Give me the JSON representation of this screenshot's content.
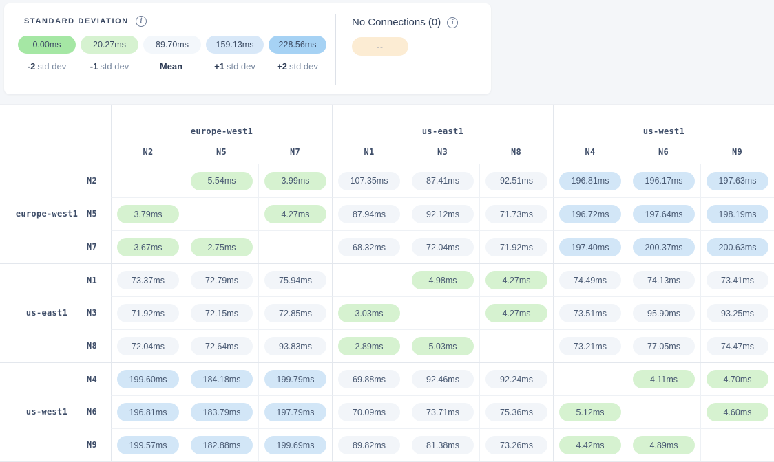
{
  "legend": {
    "title": "STANDARD DEVIATION",
    "info_icon": "info-icon",
    "items": [
      {
        "value": "0.00ms",
        "prefix": "-2",
        "suffix": "std dev",
        "color": "#a5e7a4"
      },
      {
        "value": "20.27ms",
        "prefix": "-1",
        "suffix": "std dev",
        "color": "#d6f2d0"
      },
      {
        "value": "89.70ms",
        "prefix": "Mean",
        "suffix": "",
        "color": "#f3f7fb"
      },
      {
        "value": "159.13ms",
        "prefix": "+1",
        "suffix": "std dev",
        "color": "#d8e8f8"
      },
      {
        "value": "228.56ms",
        "prefix": "+2",
        "suffix": "std dev",
        "color": "#a6d2f4"
      }
    ]
  },
  "no_connections": {
    "title": "No Connections (0)",
    "info_icon": "info-icon",
    "pill_text": "--",
    "pill_color": "#fcecd3"
  },
  "matrix": {
    "cell_colors": {
      "low": "#d6f2d0",
      "mid": "#f2f5f9",
      "high": "#d2e6f7"
    },
    "col_groups": [
      {
        "name": "europe-west1",
        "nodes": [
          "N2",
          "N5",
          "N7"
        ]
      },
      {
        "name": "us-east1",
        "nodes": [
          "N1",
          "N3",
          "N8"
        ]
      },
      {
        "name": "us-west1",
        "nodes": [
          "N4",
          "N6",
          "N9"
        ]
      }
    ],
    "row_groups": [
      {
        "name": "europe-west1",
        "rows": [
          {
            "node": "N2",
            "cells": [
              null,
              {
                "v": "5.54ms",
                "t": "low"
              },
              {
                "v": "3.99ms",
                "t": "low"
              },
              {
                "v": "107.35ms",
                "t": "mid"
              },
              {
                "v": "87.41ms",
                "t": "mid"
              },
              {
                "v": "92.51ms",
                "t": "mid"
              },
              {
                "v": "196.81ms",
                "t": "high"
              },
              {
                "v": "196.17ms",
                "t": "high"
              },
              {
                "v": "197.63ms",
                "t": "high"
              }
            ]
          },
          {
            "node": "N5",
            "cells": [
              {
                "v": "3.79ms",
                "t": "low"
              },
              null,
              {
                "v": "4.27ms",
                "t": "low"
              },
              {
                "v": "87.94ms",
                "t": "mid"
              },
              {
                "v": "92.12ms",
                "t": "mid"
              },
              {
                "v": "71.73ms",
                "t": "mid"
              },
              {
                "v": "196.72ms",
                "t": "high"
              },
              {
                "v": "197.64ms",
                "t": "high"
              },
              {
                "v": "198.19ms",
                "t": "high"
              }
            ]
          },
          {
            "node": "N7",
            "cells": [
              {
                "v": "3.67ms",
                "t": "low"
              },
              {
                "v": "2.75ms",
                "t": "low"
              },
              null,
              {
                "v": "68.32ms",
                "t": "mid"
              },
              {
                "v": "72.04ms",
                "t": "mid"
              },
              {
                "v": "71.92ms",
                "t": "mid"
              },
              {
                "v": "197.40ms",
                "t": "high"
              },
              {
                "v": "200.37ms",
                "t": "high"
              },
              {
                "v": "200.63ms",
                "t": "high"
              }
            ]
          }
        ]
      },
      {
        "name": "us-east1",
        "rows": [
          {
            "node": "N1",
            "cells": [
              {
                "v": "73.37ms",
                "t": "mid"
              },
              {
                "v": "72.79ms",
                "t": "mid"
              },
              {
                "v": "75.94ms",
                "t": "mid"
              },
              null,
              {
                "v": "4.98ms",
                "t": "low"
              },
              {
                "v": "4.27ms",
                "t": "low"
              },
              {
                "v": "74.49ms",
                "t": "mid"
              },
              {
                "v": "74.13ms",
                "t": "mid"
              },
              {
                "v": "73.41ms",
                "t": "mid"
              }
            ]
          },
          {
            "node": "N3",
            "cells": [
              {
                "v": "71.92ms",
                "t": "mid"
              },
              {
                "v": "72.15ms",
                "t": "mid"
              },
              {
                "v": "72.85ms",
                "t": "mid"
              },
              {
                "v": "3.03ms",
                "t": "low"
              },
              null,
              {
                "v": "4.27ms",
                "t": "low"
              },
              {
                "v": "73.51ms",
                "t": "mid"
              },
              {
                "v": "95.90ms",
                "t": "mid"
              },
              {
                "v": "93.25ms",
                "t": "mid"
              }
            ]
          },
          {
            "node": "N8",
            "cells": [
              {
                "v": "72.04ms",
                "t": "mid"
              },
              {
                "v": "72.64ms",
                "t": "mid"
              },
              {
                "v": "93.83ms",
                "t": "mid"
              },
              {
                "v": "2.89ms",
                "t": "low"
              },
              {
                "v": "5.03ms",
                "t": "low"
              },
              null,
              {
                "v": "73.21ms",
                "t": "mid"
              },
              {
                "v": "77.05ms",
                "t": "mid"
              },
              {
                "v": "74.47ms",
                "t": "mid"
              }
            ]
          }
        ]
      },
      {
        "name": "us-west1",
        "rows": [
          {
            "node": "N4",
            "cells": [
              {
                "v": "199.60ms",
                "t": "high"
              },
              {
                "v": "184.18ms",
                "t": "high"
              },
              {
                "v": "199.79ms",
                "t": "high"
              },
              {
                "v": "69.88ms",
                "t": "mid"
              },
              {
                "v": "92.46ms",
                "t": "mid"
              },
              {
                "v": "92.24ms",
                "t": "mid"
              },
              null,
              {
                "v": "4.11ms",
                "t": "low"
              },
              {
                "v": "4.70ms",
                "t": "low"
              }
            ]
          },
          {
            "node": "N6",
            "cells": [
              {
                "v": "196.81ms",
                "t": "high"
              },
              {
                "v": "183.79ms",
                "t": "high"
              },
              {
                "v": "197.79ms",
                "t": "high"
              },
              {
                "v": "70.09ms",
                "t": "mid"
              },
              {
                "v": "73.71ms",
                "t": "mid"
              },
              {
                "v": "75.36ms",
                "t": "mid"
              },
              {
                "v": "5.12ms",
                "t": "low"
              },
              null,
              {
                "v": "4.60ms",
                "t": "low"
              }
            ]
          },
          {
            "node": "N9",
            "cells": [
              {
                "v": "199.57ms",
                "t": "high"
              },
              {
                "v": "182.88ms",
                "t": "high"
              },
              {
                "v": "199.69ms",
                "t": "high"
              },
              {
                "v": "89.82ms",
                "t": "mid"
              },
              {
                "v": "81.38ms",
                "t": "mid"
              },
              {
                "v": "73.26ms",
                "t": "mid"
              },
              {
                "v": "4.42ms",
                "t": "low"
              },
              {
                "v": "4.89ms",
                "t": "low"
              },
              null
            ]
          }
        ]
      }
    ]
  }
}
